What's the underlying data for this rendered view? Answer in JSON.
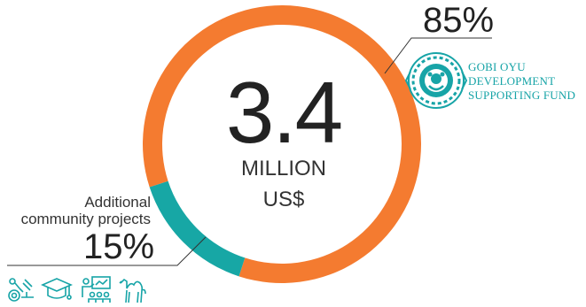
{
  "center": {
    "value": "3.4",
    "unit_line1": "MILLION",
    "unit_line2": "US$"
  },
  "chart_data": {
    "type": "pie",
    "title": "",
    "total": "3.4 MILLION US$",
    "segments": [
      {
        "label": "GOBI OYU DEVELOPMENT SUPPORTING FUND",
        "value": 85,
        "display": "85%",
        "color": "#F47B30"
      },
      {
        "label": "Additional community projects",
        "value": 15,
        "display": "15%",
        "color": "#17A7A5"
      }
    ]
  },
  "labels": {
    "fund_percent": "85%",
    "fund_name_lines": [
      "GOBI OYU",
      "DEVELOPMENT",
      "SUPPORTING FUND"
    ],
    "community_lines": [
      "Additional",
      "community projects"
    ],
    "community_percent": "15%"
  },
  "colors": {
    "orange": "#F47B30",
    "teal": "#17A7A5",
    "line": "#333333"
  },
  "icons": [
    "science-microscope-icon",
    "graduation-cap-icon",
    "teacher-presentation-icon",
    "camel-icon"
  ]
}
